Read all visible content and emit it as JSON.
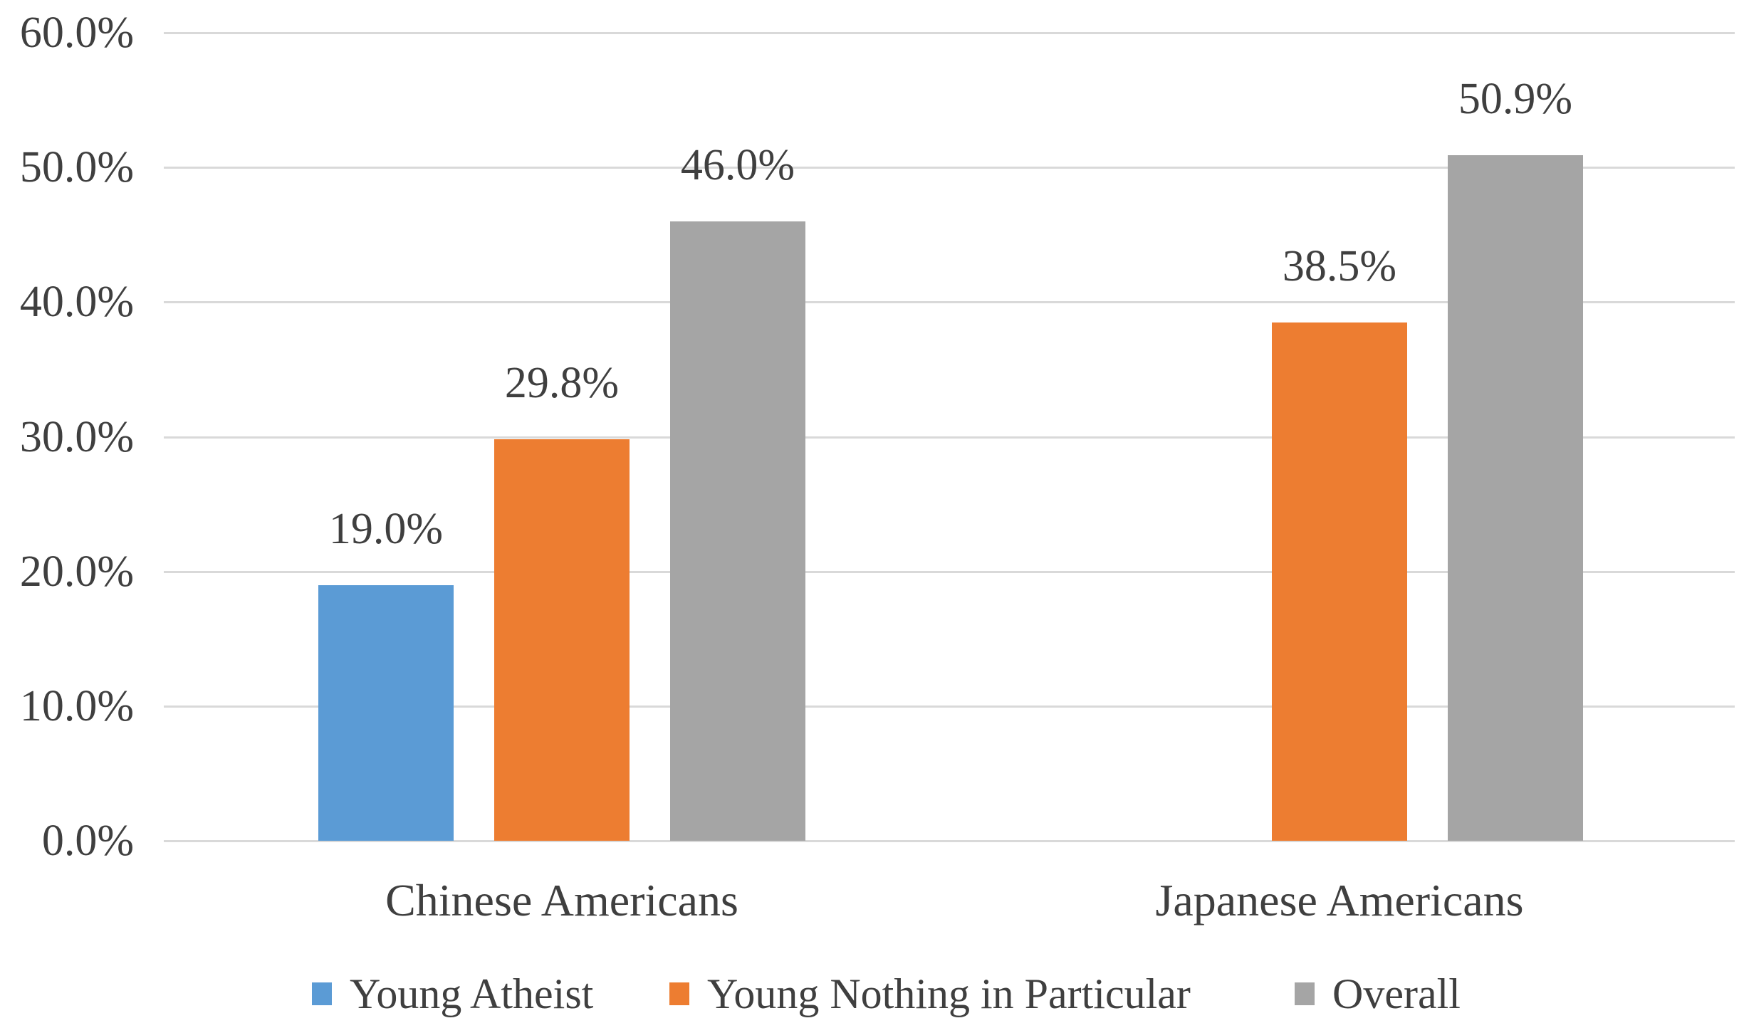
{
  "chart_data": {
    "type": "bar",
    "title": "",
    "xlabel": "",
    "ylabel": "",
    "categories": [
      "Chinese Americans",
      "Japanese Americans"
    ],
    "series": [
      {
        "name": "Young Atheist",
        "color": "#5B9BD5",
        "values": [
          19.0,
          null
        ],
        "labels": [
          "19.0%",
          null
        ]
      },
      {
        "name": "Young Nothing in Particular",
        "color": "#ED7D31",
        "values": [
          29.8,
          38.5
        ],
        "labels": [
          "29.8%",
          "38.5%"
        ]
      },
      {
        "name": "Overall",
        "color": "#A5A5A5",
        "values": [
          46.0,
          50.9
        ],
        "labels": [
          "46.0%",
          "50.9%"
        ]
      }
    ],
    "ylim": [
      0,
      60
    ],
    "ytick_step": 10,
    "ytick_labels": [
      "0.0%",
      "10.0%",
      "20.0%",
      "30.0%",
      "40.0%",
      "50.0%",
      "60.0%"
    ],
    "grid": true,
    "legend_position": "bottom"
  },
  "colors": {
    "text": "#3F3F3F",
    "gridline": "#D9D9D9",
    "background": "#FFFFFF",
    "series_blue": "#5B9BD5",
    "series_orange": "#ED7D31",
    "series_gray": "#A5A5A5"
  }
}
